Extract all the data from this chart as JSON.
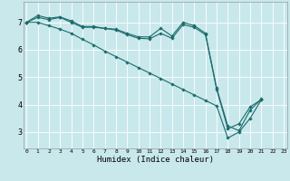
{
  "background_color": "#c8e8ec",
  "line_color": "#1a6b6b",
  "marker": "D",
  "markersize": 1.8,
  "linewidth": 0.8,
  "xlim": [
    -0.3,
    23.3
  ],
  "ylim": [
    2.4,
    7.75
  ],
  "xticks": [
    0,
    1,
    2,
    3,
    4,
    5,
    6,
    7,
    8,
    9,
    10,
    11,
    12,
    13,
    14,
    15,
    16,
    17,
    18,
    19,
    20,
    21,
    22,
    23
  ],
  "yticks": [
    3,
    4,
    5,
    6,
    7
  ],
  "grid_color": "#ffffff",
  "xlabel": "Humidex (Indice chaleur)",
  "xlabel_fontsize": 6.5,
  "xtick_fontsize": 4.5,
  "ytick_fontsize": 6.0,
  "series1_x": [
    0,
    1,
    2,
    3,
    4,
    5,
    6,
    7,
    8,
    9,
    10,
    11,
    12,
    13,
    14,
    15,
    16,
    17,
    18,
    19,
    20,
    21
  ],
  "series1_y": [
    7.0,
    7.25,
    7.15,
    7.2,
    7.05,
    6.85,
    6.85,
    6.78,
    6.75,
    6.6,
    6.47,
    6.47,
    6.78,
    6.5,
    7.0,
    6.88,
    6.6,
    4.6,
    3.22,
    3.05,
    3.8,
    4.2
  ],
  "series2_x": [
    0,
    1,
    2,
    3,
    4,
    5,
    6,
    7,
    8,
    9,
    10,
    11,
    12,
    13,
    14,
    15,
    16,
    17,
    18,
    19,
    20,
    21
  ],
  "series2_y": [
    7.0,
    7.18,
    7.1,
    7.18,
    7.0,
    6.82,
    6.82,
    6.78,
    6.72,
    6.55,
    6.42,
    6.4,
    6.6,
    6.42,
    6.92,
    6.82,
    6.55,
    4.55,
    3.12,
    3.3,
    3.92,
    4.18
  ],
  "series3_x": [
    0,
    1,
    2,
    3,
    4,
    5,
    6,
    7,
    8,
    9,
    10,
    11,
    12,
    13,
    14,
    15,
    16,
    17,
    18,
    19,
    20,
    21
  ],
  "series3_y": [
    7.0,
    7.0,
    6.88,
    6.75,
    6.6,
    6.38,
    6.18,
    5.95,
    5.75,
    5.55,
    5.35,
    5.15,
    4.95,
    4.75,
    4.55,
    4.35,
    4.15,
    3.95,
    2.78,
    3.0,
    3.5,
    4.18
  ]
}
